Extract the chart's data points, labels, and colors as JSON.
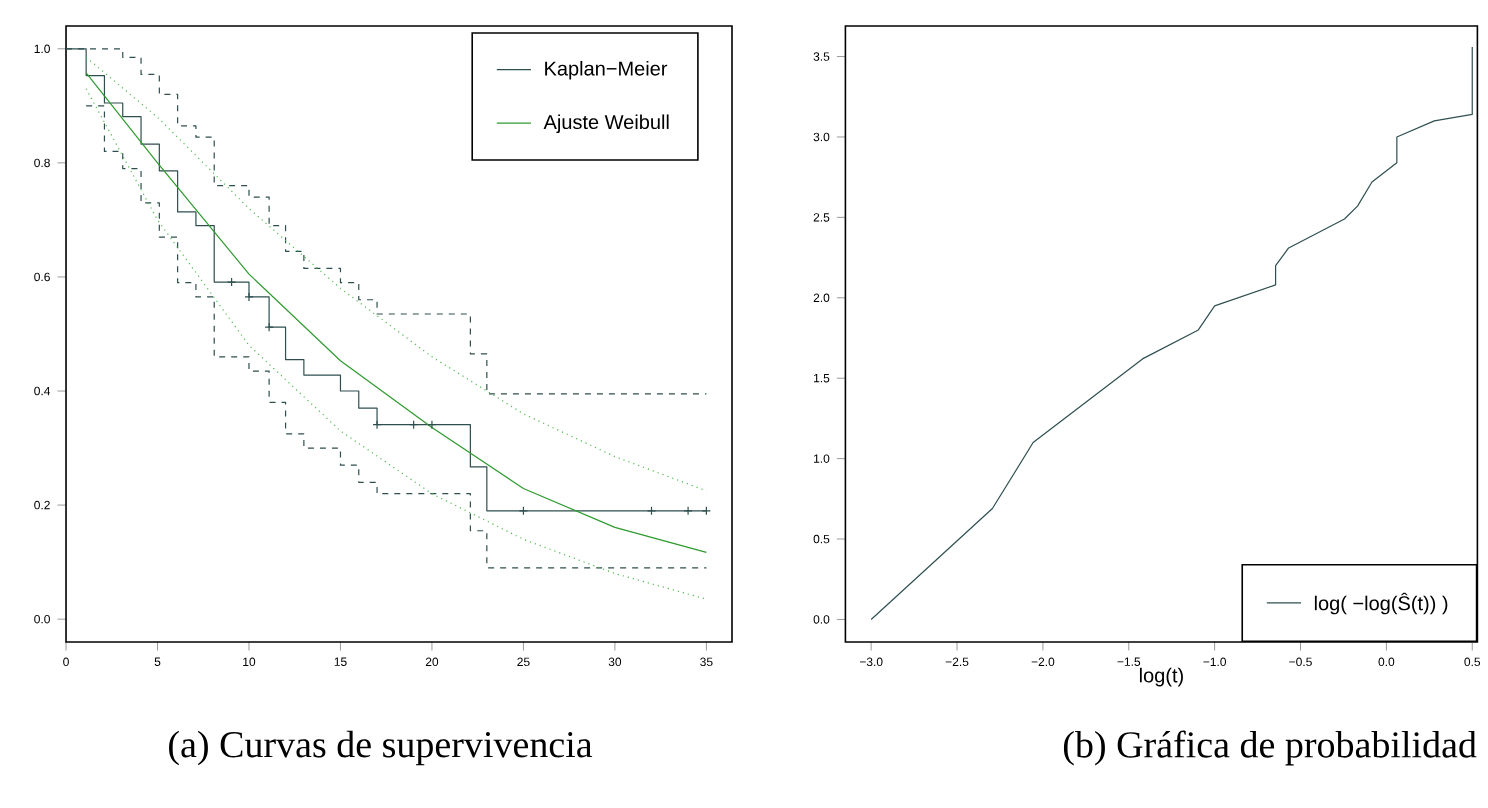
{
  "chart_data": [
    {
      "type": "line",
      "title": "(a) Curvas de supervivencia",
      "xlim": [
        0,
        36.4
      ],
      "ylim": [
        -0.04,
        1.04
      ],
      "xticks": [
        0,
        5,
        10,
        15,
        20,
        25,
        30,
        35
      ],
      "yticks": [
        {
          "value": 0,
          "label": "0.0"
        },
        {
          "value": 0.2,
          "label": "0.2"
        },
        {
          "value": 0.4,
          "label": "0.4"
        },
        {
          "value": 0.6,
          "label": "0.6"
        },
        {
          "value": 0.8,
          "label": "0.8"
        },
        {
          "value": 1,
          "label": "1.0"
        }
      ],
      "legend": "top right",
      "series": [
        {
          "name": "Kaplan−Meier",
          "type": "step",
          "color": "#2f4f4f",
          "line_style": "solid",
          "x": [
            0,
            1.1,
            2.1,
            3.1,
            4.1,
            5.1,
            6.1,
            7.1,
            8.1,
            10,
            11.1,
            12,
            13,
            15,
            16,
            17,
            22.1,
            23,
            35
          ],
          "values": [
            1,
            0.953,
            0.905,
            0.881,
            0.833,
            0.786,
            0.714,
            0.69,
            0.591,
            0.565,
            0.512,
            0.455,
            0.428,
            0.4,
            0.37,
            0.341,
            0.267,
            0.19,
            0.19
          ]
        },
        {
          "name": "Ajuste Weibull",
          "type": "line",
          "color": "#2e9a2e",
          "line_style": "solid",
          "x": [
            1.1,
            5,
            10,
            15,
            20,
            25,
            30,
            35
          ],
          "values": [
            0.958,
            0.8,
            0.605,
            0.453,
            0.336,
            0.229,
            0.161,
            0.117
          ]
        },
        {
          "type": "step",
          "color": "#2f4f4f",
          "line_style": "dashed",
          "x": [
            0,
            3.1,
            4.1,
            5.1,
            6.1,
            7.1,
            8.1,
            10,
            11.1,
            12,
            13,
            15,
            16,
            17,
            22.1,
            23,
            35
          ],
          "values": [
            1,
            0.985,
            0.955,
            0.92,
            0.865,
            0.845,
            0.76,
            0.74,
            0.69,
            0.645,
            0.615,
            0.59,
            0.56,
            0.535,
            0.465,
            0.395,
            0.395
          ]
        },
        {
          "type": "step",
          "color": "#2f4f4f",
          "line_style": "dashed",
          "x": [
            1.1,
            2.1,
            3.1,
            4.1,
            5.1,
            6.1,
            7.1,
            8.1,
            10,
            11.1,
            12,
            13,
            15,
            16,
            17,
            22.1,
            23,
            35
          ],
          "values": [
            0.9,
            0.82,
            0.79,
            0.73,
            0.67,
            0.59,
            0.565,
            0.46,
            0.435,
            0.38,
            0.325,
            0.3,
            0.27,
            0.24,
            0.22,
            0.155,
            0.09,
            0.09
          ]
        },
        {
          "type": "line",
          "color": "#4cbb4c",
          "line_style": "dotted",
          "x": [
            1.1,
            5,
            10,
            15,
            20,
            25,
            30,
            35
          ],
          "values": [
            0.985,
            0.88,
            0.72,
            0.58,
            0.46,
            0.36,
            0.285,
            0.225
          ]
        },
        {
          "type": "line",
          "color": "#4cbb4c",
          "line_style": "dotted",
          "x": [
            1.1,
            5,
            10,
            15,
            20,
            25,
            30,
            35
          ],
          "values": [
            0.93,
            0.7,
            0.48,
            0.33,
            0.22,
            0.14,
            0.08,
            0.035
          ]
        },
        {
          "type": "scatter",
          "marker": "cross",
          "color": "#2f4f4f",
          "x": [
            9.05,
            10,
            11.1,
            17,
            19,
            20,
            25,
            32,
            34,
            35
          ],
          "values": [
            0.591,
            0.565,
            0.512,
            0.341,
            0.341,
            0.341,
            0.19,
            0.19,
            0.19,
            0.19
          ]
        }
      ]
    },
    {
      "type": "line",
      "title": "(b) Gráfica de probabilidad",
      "xlabel": "log(t)",
      "xlim": [
        -3.15,
        0.53
      ],
      "ylim": [
        -0.14,
        3.69
      ],
      "xticks": [
        {
          "value": -3,
          "label": "−3.0"
        },
        {
          "value": -2.5,
          "label": "−2.5"
        },
        {
          "value": -2,
          "label": "−2.0"
        },
        {
          "value": -1.5,
          "label": "−1.5"
        },
        {
          "value": -1,
          "label": "−1.0"
        },
        {
          "value": -0.5,
          "label": "−0.5"
        },
        {
          "value": 0,
          "label": "0.0"
        },
        {
          "value": 0.5,
          "label": "0.5"
        }
      ],
      "yticks": [
        {
          "value": 0,
          "label": "0.0"
        },
        {
          "value": 0.5,
          "label": "0.5"
        },
        {
          "value": 1,
          "label": "1.0"
        },
        {
          "value": 1.5,
          "label": "1.5"
        },
        {
          "value": 2,
          "label": "2.0"
        },
        {
          "value": 2.5,
          "label": "2.5"
        },
        {
          "value": 3,
          "label": "3.0"
        },
        {
          "value": 3.5,
          "label": "3.5"
        }
      ],
      "legend": "bottom right",
      "series": [
        {
          "name": "log( −log(Ŝ(t)) )",
          "type": "line",
          "color": "#2f4f4f",
          "line_style": "solid",
          "x": [
            -3.0,
            -2.294,
            -2.057,
            -1.42,
            -1.095,
            -1.0,
            -0.645,
            -0.645,
            -0.569,
            -0.244,
            -0.168,
            -0.084,
            0.061,
            0.061,
            0.279,
            0.5,
            0.5
          ],
          "values": [
            0,
            0.69,
            1.1,
            1.62,
            1.8,
            1.95,
            2.08,
            2.2,
            2.31,
            2.49,
            2.57,
            2.72,
            2.84,
            3.0,
            3.1,
            3.14,
            3.56
          ]
        }
      ]
    }
  ]
}
